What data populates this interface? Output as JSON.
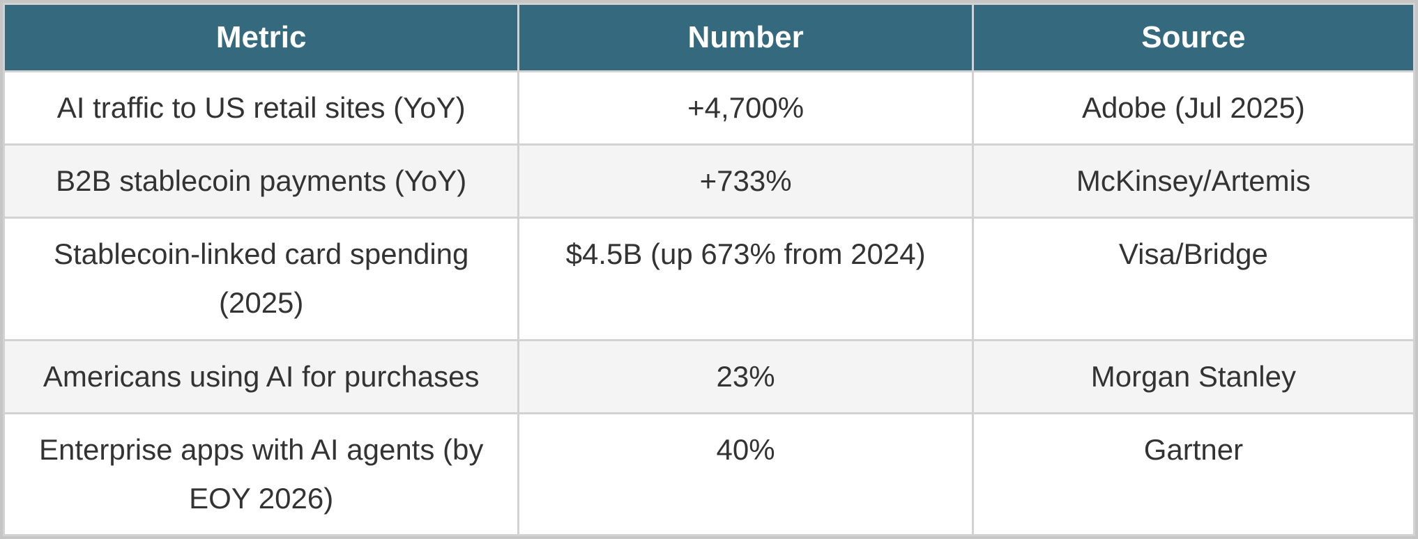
{
  "style": {
    "header_bg": "#34697e",
    "header_text": "#ffffff",
    "row_bg": "#ffffff",
    "row_alt_bg": "#f4f4f4",
    "grid_border": "#d2d2d2",
    "outer_border": "#c6c6c6",
    "cell_text": "#333333"
  },
  "chart_data": {
    "type": "table",
    "columns": [
      "Metric",
      "Number",
      "Source"
    ],
    "rows": [
      [
        "AI traffic to US retail sites (YoY)",
        "+4,700%",
        "Adobe (Jul 2025)"
      ],
      [
        "B2B stablecoin payments (YoY)",
        "+733%",
        "McKinsey/Artemis"
      ],
      [
        "Stablecoin-linked card spending (2025)",
        "$4.5B (up 673% from 2024)",
        "Visa/Bridge"
      ],
      [
        "Americans using AI for purchases",
        "23%",
        "Morgan Stanley"
      ],
      [
        "Enterprise apps with AI agents (by EOY 2026)",
        "40%",
        "Gartner"
      ]
    ],
    "layout": {
      "header_row": true,
      "zebra_striping": true,
      "alignment": "center"
    }
  }
}
